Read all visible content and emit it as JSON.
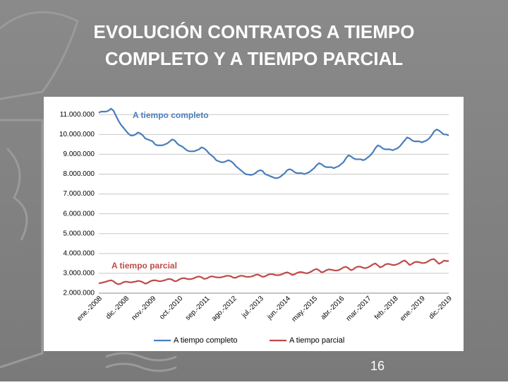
{
  "title": [
    "EVOLUCIÓN CONTRATOS A TIEMPO",
    "COMPLETO Y A TIEMPO PARCIAL"
  ],
  "page_number": "16",
  "chart_data": {
    "type": "line",
    "annotations": [
      "A tiempo completo",
      "A tiempo parcial"
    ],
    "categories": [
      "ene.-2008",
      null,
      null,
      null,
      null,
      null,
      null,
      null,
      null,
      null,
      null,
      "dic.-2008",
      null,
      null,
      null,
      null,
      null,
      null,
      null,
      null,
      null,
      null,
      "nov.-2009",
      null,
      null,
      null,
      null,
      null,
      null,
      null,
      null,
      null,
      null,
      "oct.-2010",
      null,
      null,
      null,
      null,
      null,
      null,
      null,
      null,
      null,
      null,
      "sep.-2011",
      null,
      null,
      null,
      null,
      null,
      null,
      null,
      null,
      null,
      null,
      "ago.-2012",
      null,
      null,
      null,
      null,
      null,
      null,
      null,
      null,
      null,
      null,
      "jul.-2013",
      null,
      null,
      null,
      null,
      null,
      null,
      null,
      null,
      null,
      null,
      "jun.-2014",
      null,
      null,
      null,
      null,
      null,
      null,
      null,
      null,
      null,
      null,
      "may.-2015",
      null,
      null,
      null,
      null,
      null,
      null,
      null,
      null,
      null,
      null,
      "abr.-2016",
      null,
      null,
      null,
      null,
      null,
      null,
      null,
      null,
      null,
      null,
      "mar.-2017",
      null,
      null,
      null,
      null,
      null,
      null,
      null,
      null,
      null,
      null,
      "feb.-2018",
      null,
      null,
      null,
      null,
      null,
      null,
      null,
      null,
      null,
      null,
      "ene.-2019",
      null,
      null,
      null,
      null,
      null,
      null,
      null,
      null,
      null,
      null,
      "dic.-2019"
    ],
    "series": [
      {
        "name": "A tiempo completo",
        "color": "#4a7ebb",
        "values": [
          11100000,
          11150000,
          11150000,
          11150000,
          11200000,
          11300000,
          11200000,
          10950000,
          10700000,
          10500000,
          10350000,
          10200000,
          10050000,
          9950000,
          9950000,
          10000000,
          10100000,
          10050000,
          9950000,
          9800000,
          9750000,
          9700000,
          9650000,
          9500000,
          9450000,
          9450000,
          9450000,
          9500000,
          9550000,
          9650000,
          9750000,
          9700000,
          9550000,
          9450000,
          9400000,
          9300000,
          9200000,
          9150000,
          9150000,
          9150000,
          9200000,
          9250000,
          9350000,
          9300000,
          9200000,
          9050000,
          8950000,
          8850000,
          8700000,
          8650000,
          8600000,
          8600000,
          8650000,
          8700000,
          8650000,
          8550000,
          8400000,
          8300000,
          8200000,
          8100000,
          8000000,
          7980000,
          7960000,
          7980000,
          8050000,
          8150000,
          8200000,
          8150000,
          8000000,
          7950000,
          7900000,
          7850000,
          7800000,
          7800000,
          7850000,
          7950000,
          8050000,
          8200000,
          8250000,
          8200000,
          8100000,
          8050000,
          8050000,
          8050000,
          8000000,
          8050000,
          8100000,
          8200000,
          8300000,
          8450000,
          8550000,
          8500000,
          8400000,
          8350000,
          8350000,
          8350000,
          8300000,
          8350000,
          8400000,
          8500000,
          8600000,
          8800000,
          8950000,
          8900000,
          8800000,
          8750000,
          8750000,
          8750000,
          8700000,
          8750000,
          8850000,
          8950000,
          9100000,
          9300000,
          9450000,
          9400000,
          9300000,
          9250000,
          9250000,
          9250000,
          9200000,
          9250000,
          9300000,
          9400000,
          9550000,
          9700000,
          9850000,
          9800000,
          9700000,
          9650000,
          9650000,
          9650000,
          9600000,
          9650000,
          9700000,
          9800000,
          9950000,
          10150000,
          10250000,
          10200000,
          10100000,
          10000000,
          10000000,
          9950000
        ]
      },
      {
        "name": "A tiempo parcial",
        "color": "#be4b48",
        "values": [
          2500000,
          2520000,
          2550000,
          2580000,
          2620000,
          2650000,
          2600000,
          2500000,
          2450000,
          2480000,
          2550000,
          2580000,
          2560000,
          2540000,
          2560000,
          2580000,
          2620000,
          2600000,
          2550000,
          2480000,
          2520000,
          2600000,
          2640000,
          2650000,
          2620000,
          2600000,
          2620000,
          2650000,
          2700000,
          2720000,
          2680000,
          2600000,
          2620000,
          2700000,
          2750000,
          2760000,
          2720000,
          2700000,
          2720000,
          2760000,
          2820000,
          2840000,
          2800000,
          2720000,
          2740000,
          2800000,
          2850000,
          2830000,
          2800000,
          2790000,
          2800000,
          2830000,
          2870000,
          2880000,
          2850000,
          2780000,
          2780000,
          2840000,
          2880000,
          2870000,
          2830000,
          2820000,
          2830000,
          2860000,
          2920000,
          2940000,
          2880000,
          2820000,
          2850000,
          2920000,
          2960000,
          2960000,
          2920000,
          2900000,
          2920000,
          2960000,
          3020000,
          3050000,
          3000000,
          2920000,
          2950000,
          3020000,
          3060000,
          3060000,
          3020000,
          3000000,
          3040000,
          3100000,
          3180000,
          3220000,
          3150000,
          3050000,
          3080000,
          3160000,
          3200000,
          3180000,
          3150000,
          3140000,
          3160000,
          3220000,
          3300000,
          3330000,
          3260000,
          3160000,
          3200000,
          3300000,
          3340000,
          3330000,
          3280000,
          3260000,
          3300000,
          3370000,
          3450000,
          3500000,
          3400000,
          3300000,
          3350000,
          3440000,
          3480000,
          3460000,
          3420000,
          3420000,
          3460000,
          3520000,
          3600000,
          3650000,
          3550000,
          3420000,
          3480000,
          3560000,
          3580000,
          3560000,
          3520000,
          3520000,
          3560000,
          3640000,
          3700000,
          3720000,
          3600000,
          3480000,
          3540000,
          3640000,
          3620000,
          3620000
        ]
      }
    ],
    "ylim": [
      2000000,
      11400000
    ],
    "yticks": [
      {
        "value": 2000000,
        "label": "2.000.000"
      },
      {
        "value": 3000000,
        "label": "3.000.000"
      },
      {
        "value": 4000000,
        "label": "4.000.000"
      },
      {
        "value": 5000000,
        "label": "5.000.000"
      },
      {
        "value": 6000000,
        "label": "6.000.000"
      },
      {
        "value": 7000000,
        "label": "7.000.000"
      },
      {
        "value": 8000000,
        "label": "8.000.000"
      },
      {
        "value": 9000000,
        "label": "9.000.000"
      },
      {
        "value": 10000000,
        "label": "10.000.000"
      },
      {
        "value": 11000000,
        "label": "11.000.000"
      }
    ],
    "grid": true,
    "legend": "bottom"
  }
}
